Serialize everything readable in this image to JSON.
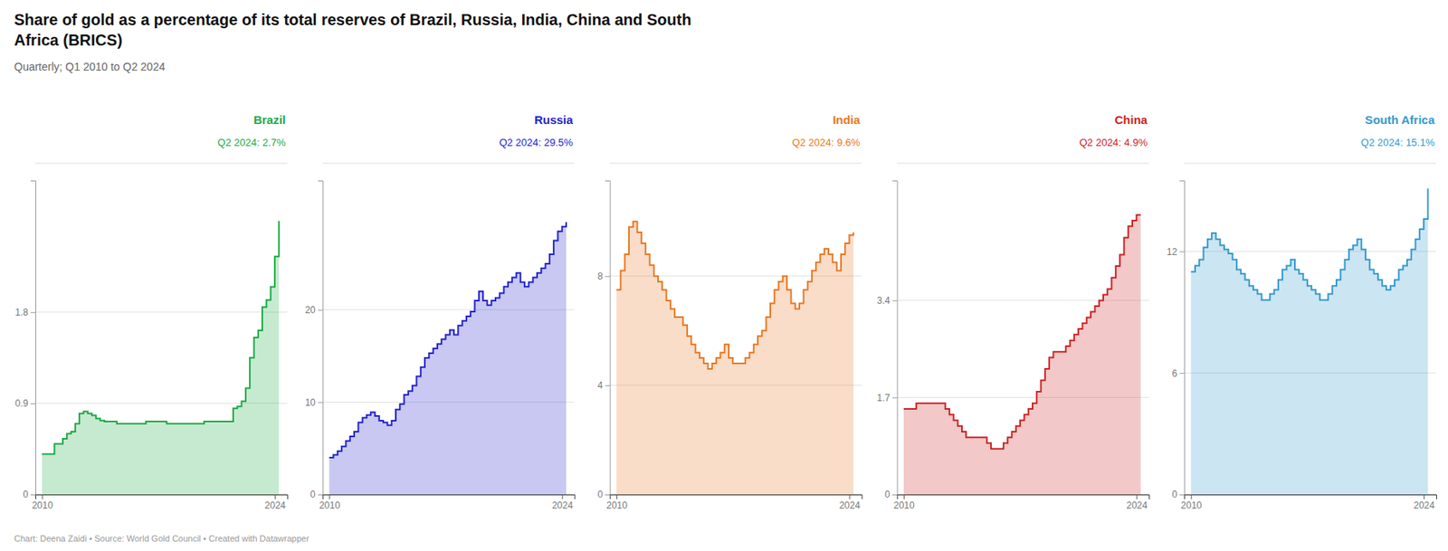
{
  "title": [
    "Share of gold as a percentage of its total reserves of Brazil, Russia, India, China and South",
    "Africa (BRICS)"
  ],
  "subtitle": "Quarterly; Q1 2010 to Q2 2024",
  "footer": "Chart: Deena Zaidi • Source: World Gold Council • Created with Datawrapper",
  "chart_data": [
    {
      "type": "area",
      "line_style": "step",
      "title": "Brazil",
      "annotations": [
        "Q2 2024: 2.7%"
      ],
      "grid": true,
      "x": [
        2010,
        2010.25,
        2010.5,
        2010.75,
        2011,
        2011.25,
        2011.5,
        2011.75,
        2012,
        2012.25,
        2012.5,
        2012.75,
        2013,
        2013.25,
        2013.5,
        2013.75,
        2014,
        2014.25,
        2014.5,
        2014.75,
        2015,
        2015.25,
        2015.5,
        2015.75,
        2016,
        2016.25,
        2016.5,
        2016.75,
        2017,
        2017.25,
        2017.5,
        2017.75,
        2018,
        2018.25,
        2018.5,
        2018.75,
        2019,
        2019.25,
        2019.5,
        2019.75,
        2020,
        2020.25,
        2020.5,
        2020.75,
        2021,
        2021.25,
        2021.5,
        2021.75,
        2022,
        2022.25,
        2022.5,
        2022.75,
        2023,
        2023.25,
        2023.5,
        2023.75,
        2024,
        2024.25
      ],
      "xlim": [
        2009.6,
        2024.75
      ],
      "xticks": [
        2010,
        2024
      ],
      "ylim": [
        0,
        3.1
      ],
      "yticks": [
        0,
        0.9,
        1.8
      ],
      "series": [
        {
          "color": "#1aaa44",
          "values": [
            0.4,
            0.4,
            0.4,
            0.5,
            0.5,
            0.55,
            0.6,
            0.62,
            0.7,
            0.8,
            0.82,
            0.8,
            0.78,
            0.75,
            0.73,
            0.72,
            0.72,
            0.72,
            0.7,
            0.7,
            0.7,
            0.7,
            0.7,
            0.7,
            0.7,
            0.72,
            0.72,
            0.72,
            0.72,
            0.72,
            0.7,
            0.7,
            0.7,
            0.7,
            0.7,
            0.7,
            0.7,
            0.7,
            0.7,
            0.72,
            0.72,
            0.72,
            0.72,
            0.72,
            0.72,
            0.72,
            0.85,
            0.87,
            0.92,
            1.05,
            1.35,
            1.55,
            1.62,
            1.85,
            1.92,
            2.05,
            2.35,
            2.7
          ]
        }
      ]
    },
    {
      "type": "area",
      "line_style": "step",
      "title": "Russia",
      "annotations": [
        "Q2 2024: 29.5%"
      ],
      "grid": true,
      "x": [
        2010,
        2010.25,
        2010.5,
        2010.75,
        2011,
        2011.25,
        2011.5,
        2011.75,
        2012,
        2012.25,
        2012.5,
        2012.75,
        2013,
        2013.25,
        2013.5,
        2013.75,
        2014,
        2014.25,
        2014.5,
        2014.75,
        2015,
        2015.25,
        2015.5,
        2015.75,
        2016,
        2016.25,
        2016.5,
        2016.75,
        2017,
        2017.25,
        2017.5,
        2017.75,
        2018,
        2018.25,
        2018.5,
        2018.75,
        2019,
        2019.25,
        2019.5,
        2019.75,
        2020,
        2020.25,
        2020.5,
        2020.75,
        2021,
        2021.25,
        2021.5,
        2021.75,
        2022,
        2022.25,
        2022.5,
        2022.75,
        2023,
        2023.25,
        2023.5,
        2023.75,
        2024,
        2024.25
      ],
      "xlim": [
        2009.6,
        2024.75
      ],
      "xticks": [
        2010,
        2024
      ],
      "ylim": [
        0,
        34
      ],
      "yticks": [
        0,
        10,
        20
      ],
      "series": [
        {
          "color": "#2222cc",
          "values": [
            4.0,
            4.3,
            4.7,
            5.2,
            5.8,
            6.3,
            6.8,
            7.8,
            8.3,
            8.6,
            8.9,
            8.5,
            8.0,
            7.8,
            7.5,
            8.0,
            9.2,
            9.8,
            10.8,
            11.2,
            11.8,
            12.8,
            13.8,
            14.8,
            15.3,
            15.8,
            16.3,
            16.8,
            17.3,
            17.8,
            17.3,
            18.3,
            18.8,
            19.3,
            19.8,
            21.0,
            22.0,
            21.0,
            20.5,
            21.0,
            21.3,
            21.8,
            22.5,
            23.0,
            23.5,
            24.0,
            23.0,
            22.5,
            23.0,
            23.5,
            24.0,
            24.5,
            25.0,
            26.0,
            27.5,
            28.5,
            29.0,
            29.5
          ]
        }
      ]
    },
    {
      "type": "area",
      "line_style": "step",
      "title": "India",
      "annotations": [
        "Q2 2024: 9.6%"
      ],
      "grid": true,
      "x": [
        2010,
        2010.25,
        2010.5,
        2010.75,
        2011,
        2011.25,
        2011.5,
        2011.75,
        2012,
        2012.25,
        2012.5,
        2012.75,
        2013,
        2013.25,
        2013.5,
        2013.75,
        2014,
        2014.25,
        2014.5,
        2014.75,
        2015,
        2015.25,
        2015.5,
        2015.75,
        2016,
        2016.25,
        2016.5,
        2016.75,
        2017,
        2017.25,
        2017.5,
        2017.75,
        2018,
        2018.25,
        2018.5,
        2018.75,
        2019,
        2019.25,
        2019.5,
        2019.75,
        2020,
        2020.25,
        2020.5,
        2020.75,
        2021,
        2021.25,
        2021.5,
        2021.75,
        2022,
        2022.25,
        2022.5,
        2022.75,
        2023,
        2023.25,
        2023.5,
        2023.75,
        2024,
        2024.25
      ],
      "xlim": [
        2009.6,
        2024.75
      ],
      "xticks": [
        2010,
        2024
      ],
      "ylim": [
        0,
        11.5
      ],
      "yticks": [
        0,
        4,
        8
      ],
      "series": [
        {
          "color": "#e87722",
          "values": [
            7.5,
            8.2,
            8.8,
            9.8,
            10.0,
            9.6,
            9.2,
            8.8,
            8.4,
            8.0,
            7.8,
            7.5,
            7.1,
            6.8,
            6.5,
            6.5,
            6.2,
            5.8,
            5.5,
            5.2,
            5.0,
            4.8,
            4.6,
            4.8,
            5.0,
            5.2,
            5.5,
            5.0,
            4.8,
            4.8,
            4.8,
            5.0,
            5.2,
            5.5,
            5.8,
            6.0,
            6.5,
            7.0,
            7.5,
            7.8,
            8.0,
            7.5,
            7.0,
            6.8,
            7.0,
            7.5,
            7.8,
            8.2,
            8.5,
            8.8,
            9.0,
            8.8,
            8.5,
            8.2,
            8.8,
            9.2,
            9.5,
            9.6
          ]
        }
      ]
    },
    {
      "type": "area",
      "line_style": "step",
      "title": "China",
      "annotations": [
        "Q2 2024: 4.9%"
      ],
      "grid": true,
      "x": [
        2010,
        2010.25,
        2010.5,
        2010.75,
        2011,
        2011.25,
        2011.5,
        2011.75,
        2012,
        2012.25,
        2012.5,
        2012.75,
        2013,
        2013.25,
        2013.5,
        2013.75,
        2014,
        2014.25,
        2014.5,
        2014.75,
        2015,
        2015.25,
        2015.5,
        2015.75,
        2016,
        2016.25,
        2016.5,
        2016.75,
        2017,
        2017.25,
        2017.5,
        2017.75,
        2018,
        2018.25,
        2018.5,
        2018.75,
        2019,
        2019.25,
        2019.5,
        2019.75,
        2020,
        2020.25,
        2020.5,
        2020.75,
        2021,
        2021.25,
        2021.5,
        2021.75,
        2022,
        2022.25,
        2022.5,
        2022.75,
        2023,
        2023.25,
        2023.5,
        2023.75,
        2024,
        2024.25
      ],
      "xlim": [
        2009.6,
        2024.75
      ],
      "xticks": [
        2010,
        2024
      ],
      "ylim": [
        0,
        5.5
      ],
      "yticks": [
        0,
        1.7,
        3.4
      ],
      "series": [
        {
          "color": "#cc2222",
          "values": [
            1.5,
            1.5,
            1.5,
            1.6,
            1.6,
            1.6,
            1.6,
            1.6,
            1.6,
            1.6,
            1.5,
            1.4,
            1.3,
            1.2,
            1.1,
            1.0,
            1.0,
            1.0,
            1.0,
            1.0,
            0.9,
            0.8,
            0.8,
            0.8,
            0.9,
            1.0,
            1.1,
            1.2,
            1.3,
            1.4,
            1.5,
            1.6,
            1.8,
            2.0,
            2.2,
            2.4,
            2.5,
            2.5,
            2.5,
            2.6,
            2.7,
            2.8,
            2.9,
            3.0,
            3.1,
            3.2,
            3.3,
            3.4,
            3.5,
            3.6,
            3.8,
            4.0,
            4.2,
            4.5,
            4.7,
            4.8,
            4.9,
            4.9
          ]
        }
      ]
    },
    {
      "type": "area",
      "line_style": "step",
      "title": "South Africa",
      "annotations": [
        "Q2 2024: 15.1%"
      ],
      "grid": true,
      "x": [
        2010,
        2010.25,
        2010.5,
        2010.75,
        2011,
        2011.25,
        2011.5,
        2011.75,
        2012,
        2012.25,
        2012.5,
        2012.75,
        2013,
        2013.25,
        2013.5,
        2013.75,
        2014,
        2014.25,
        2014.5,
        2014.75,
        2015,
        2015.25,
        2015.5,
        2015.75,
        2016,
        2016.25,
        2016.5,
        2016.75,
        2017,
        2017.25,
        2017.5,
        2017.75,
        2018,
        2018.25,
        2018.5,
        2018.75,
        2019,
        2019.25,
        2019.5,
        2019.75,
        2020,
        2020.25,
        2020.5,
        2020.75,
        2021,
        2021.25,
        2021.5,
        2021.75,
        2022,
        2022.25,
        2022.5,
        2022.75,
        2023,
        2023.25,
        2023.5,
        2023.75,
        2024,
        2024.25
      ],
      "xlim": [
        2009.6,
        2024.75
      ],
      "xticks": [
        2010,
        2024
      ],
      "ylim": [
        0,
        15.5
      ],
      "yticks": [
        0,
        6,
        12
      ],
      "series": [
        {
          "color": "#3399cc",
          "values": [
            11.0,
            11.3,
            11.6,
            12.2,
            12.6,
            12.9,
            12.6,
            12.3,
            12.1,
            11.9,
            11.6,
            11.1,
            10.9,
            10.6,
            10.3,
            10.1,
            9.9,
            9.6,
            9.6,
            9.9,
            10.1,
            10.6,
            11.1,
            11.3,
            11.6,
            11.1,
            10.9,
            10.6,
            10.3,
            10.1,
            9.9,
            9.6,
            9.6,
            9.9,
            10.3,
            10.6,
            11.1,
            11.6,
            12.1,
            12.3,
            12.6,
            12.1,
            11.6,
            11.1,
            10.9,
            10.6,
            10.3,
            10.1,
            10.3,
            10.6,
            11.1,
            11.3,
            11.6,
            12.1,
            12.6,
            13.1,
            13.6,
            15.1
          ]
        }
      ]
    }
  ]
}
